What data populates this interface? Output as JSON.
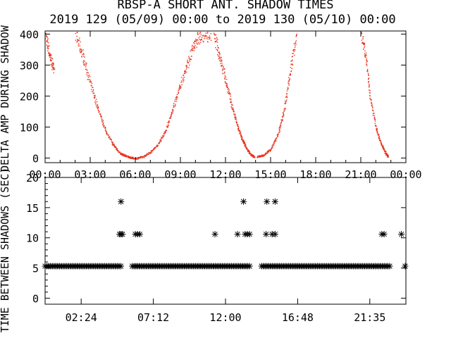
{
  "title": "RBSP-A SHORT ANT. SHADOW TIMES",
  "subtitle": "2019 129 (05/09) 00:00 to 2019 130 (05/10) 00:00",
  "colors": {
    "scatter": "#e8321e",
    "marks": "#000000",
    "axis": "#000000",
    "background": "#ffffff"
  },
  "chart_data": [
    {
      "type": "scatter",
      "title": "RBSP-A SHORT ANT. SHADOW TIMES",
      "ylabel": "DELTA AMP DURING SHADOW",
      "xlabel": "",
      "xlim": [
        "00:00",
        "00:00"
      ],
      "ylim": [
        -15,
        410
      ],
      "x_tick_labels": [
        "00:00",
        "03:00",
        "06:00",
        "09:00",
        "12:00",
        "15:00",
        "18:00",
        "21:00",
        "00:00"
      ],
      "y_tick_labels": [
        "0",
        "100",
        "200",
        "300",
        "400"
      ],
      "marker": "dot",
      "segments_description_hours_amp": [
        {
          "x": [
            0.0,
            0.3,
            0.6
          ],
          "y": [
            400,
            330,
            280
          ]
        },
        {
          "x": [
            2.0,
            2.5,
            3.0,
            3.5,
            4.0,
            4.5,
            5.0,
            5.5,
            5.9
          ],
          "y": [
            400,
            330,
            240,
            160,
            90,
            45,
            15,
            5,
            0
          ]
        },
        {
          "x": [
            6.0,
            6.5,
            7.0,
            7.5,
            8.0,
            8.5,
            9.0,
            9.5,
            10.0,
            10.5,
            11.0
          ],
          "y": [
            0,
            5,
            20,
            45,
            90,
            160,
            240,
            310,
            380,
            400,
            400
          ]
        },
        {
          "x": [
            11.2,
            11.6,
            12.0,
            12.4,
            12.8,
            13.1,
            13.4,
            13.7,
            13.9
          ],
          "y": [
            400,
            330,
            250,
            170,
            100,
            60,
            30,
            10,
            5
          ]
        },
        {
          "x": [
            14.1,
            14.5,
            15.0,
            15.5,
            15.9,
            16.3,
            16.7
          ],
          "y": [
            5,
            10,
            30,
            80,
            160,
            280,
            400
          ]
        },
        {
          "x": [
            21.0,
            21.3,
            21.6,
            22.0,
            22.3,
            22.6,
            22.8
          ],
          "y": [
            400,
            330,
            200,
            100,
            50,
            20,
            5
          ]
        }
      ]
    },
    {
      "type": "scatter",
      "ylabel": "TIME BETWEEN SHADOWS (SEC)",
      "xlabel": "",
      "xlim": [
        "00:00",
        "00:00"
      ],
      "ylim": [
        -1,
        20
      ],
      "x_tick_labels": [
        "02:24",
        "07:12",
        "12:00",
        "16:48",
        "21:35"
      ],
      "y_tick_labels": [
        "0",
        "5",
        "10",
        "15",
        "20"
      ],
      "marker": "asterisk",
      "baseline_value": 5.3,
      "baseline_ranges_hours": [
        [
          0.0,
          5.1
        ],
        [
          5.8,
          13.7
        ],
        [
          14.4,
          23.0
        ]
      ],
      "points": [
        {
          "x": 5.05,
          "y": 16
        },
        {
          "x": 4.95,
          "y": 10.6
        },
        {
          "x": 5.05,
          "y": 10.6
        },
        {
          "x": 5.15,
          "y": 10.6
        },
        {
          "x": 6.0,
          "y": 10.6
        },
        {
          "x": 6.15,
          "y": 10.6
        },
        {
          "x": 6.3,
          "y": 10.6
        },
        {
          "x": 11.3,
          "y": 10.6
        },
        {
          "x": 12.8,
          "y": 10.6
        },
        {
          "x": 13.2,
          "y": 16
        },
        {
          "x": 13.3,
          "y": 10.6
        },
        {
          "x": 13.45,
          "y": 10.6
        },
        {
          "x": 13.6,
          "y": 10.6
        },
        {
          "x": 14.7,
          "y": 10.6
        },
        {
          "x": 14.75,
          "y": 16
        },
        {
          "x": 15.1,
          "y": 10.6
        },
        {
          "x": 15.3,
          "y": 10.6
        },
        {
          "x": 15.3,
          "y": 16
        },
        {
          "x": 22.4,
          "y": 10.6
        },
        {
          "x": 22.55,
          "y": 10.6
        },
        {
          "x": 23.7,
          "y": 10.6
        },
        {
          "x": 23.95,
          "y": 5.3
        }
      ]
    }
  ]
}
